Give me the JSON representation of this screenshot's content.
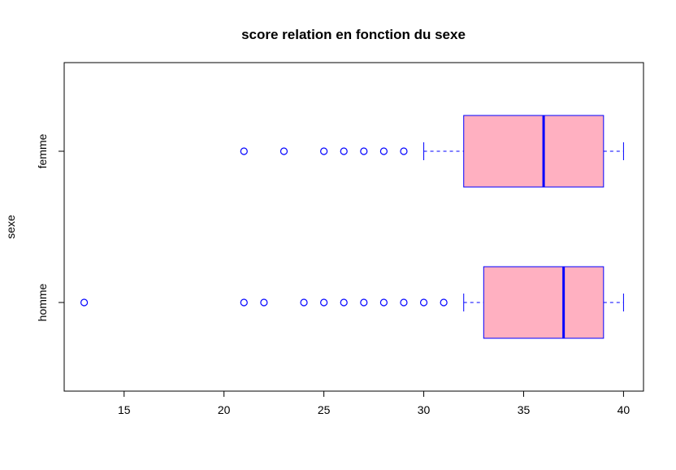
{
  "chart_data": {
    "type": "boxplot",
    "orientation": "horizontal",
    "title": "score relation en fonction du sexe",
    "xlabel": "",
    "ylabel": "sexe",
    "xlim": [
      12,
      41
    ],
    "xticks": [
      15,
      20,
      25,
      30,
      35,
      40
    ],
    "categories": [
      "homme",
      "femme"
    ],
    "colors": {
      "box_fill": "#ffb0c1",
      "box_border": "#0000ff",
      "outlier": "#0000ff"
    },
    "series": [
      {
        "category": "homme",
        "whisker_low": 32,
        "q1": 33,
        "median": 37,
        "q3": 39,
        "whisker_high": 40,
        "outliers": [
          13,
          21,
          22,
          24,
          25,
          26,
          27,
          28,
          29,
          30,
          31
        ]
      },
      {
        "category": "femme",
        "whisker_low": 30,
        "q1": 32,
        "median": 36,
        "q3": 39,
        "whisker_high": 40,
        "outliers": [
          21,
          23,
          25,
          26,
          27,
          28,
          29
        ]
      }
    ]
  }
}
